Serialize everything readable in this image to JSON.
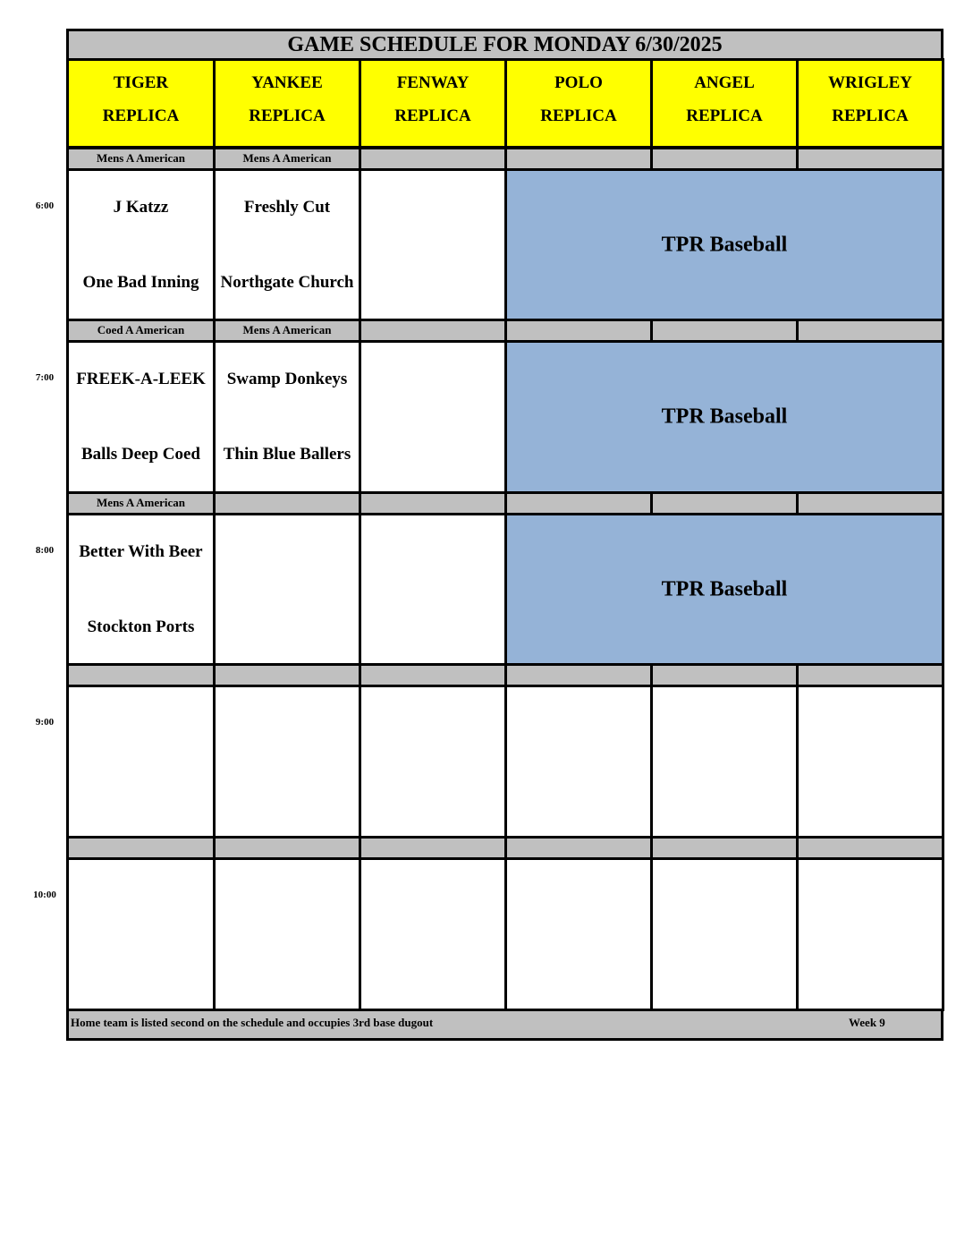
{
  "title": "GAME SCHEDULE FOR MONDAY 6/30/2025",
  "fields": [
    {
      "line1": "TIGER",
      "line2": "REPLICA"
    },
    {
      "line1": "YANKEE",
      "line2": "REPLICA"
    },
    {
      "line1": "FENWAY",
      "line2": "REPLICA"
    },
    {
      "line1": "POLO",
      "line2": "REPLICA"
    },
    {
      "line1": "ANGEL",
      "line2": "REPLICA"
    },
    {
      "line1": "WRIGLEY",
      "line2": "REPLICA"
    }
  ],
  "slots": [
    {
      "time": "6:00",
      "leagues": [
        "Mens A American",
        "Mens A American",
        "",
        "",
        "",
        ""
      ],
      "games": [
        {
          "away": "J Katzz",
          "home": "One Bad Inning"
        },
        {
          "away": "Freshly Cut",
          "home": "Northgate Church"
        },
        {
          "away": "",
          "home": ""
        }
      ],
      "rental": "TPR Baseball"
    },
    {
      "time": "7:00",
      "leagues": [
        "Coed A American",
        "Mens A American",
        "",
        "",
        "",
        ""
      ],
      "games": [
        {
          "away": "FREEK-A-LEEK",
          "home": "Balls Deep Coed"
        },
        {
          "away": "Swamp Donkeys",
          "home": "Thin Blue Ballers"
        },
        {
          "away": "",
          "home": ""
        }
      ],
      "rental": "TPR Baseball"
    },
    {
      "time": "8:00",
      "leagues": [
        "Mens A American",
        "",
        "",
        "",
        "",
        ""
      ],
      "games": [
        {
          "away": "Better With Beer",
          "home": "Stockton Ports"
        },
        {
          "away": "",
          "home": ""
        },
        {
          "away": "",
          "home": ""
        }
      ],
      "rental": "TPR Baseball"
    },
    {
      "time": "9:00",
      "leagues": [
        "",
        "",
        "",
        "",
        "",
        ""
      ],
      "games": [],
      "rental": ""
    },
    {
      "time": "10:00",
      "leagues": [
        "",
        "",
        "",
        "",
        "",
        ""
      ],
      "games": [],
      "rental": ""
    }
  ],
  "footer": {
    "note": "Home team is listed second on the schedule and occupies 3rd base dugout",
    "week": "Week 9"
  },
  "colors": {
    "header": "#ffff00",
    "label_row": "#c0c0c0",
    "rental_block": "#95b3d7"
  }
}
